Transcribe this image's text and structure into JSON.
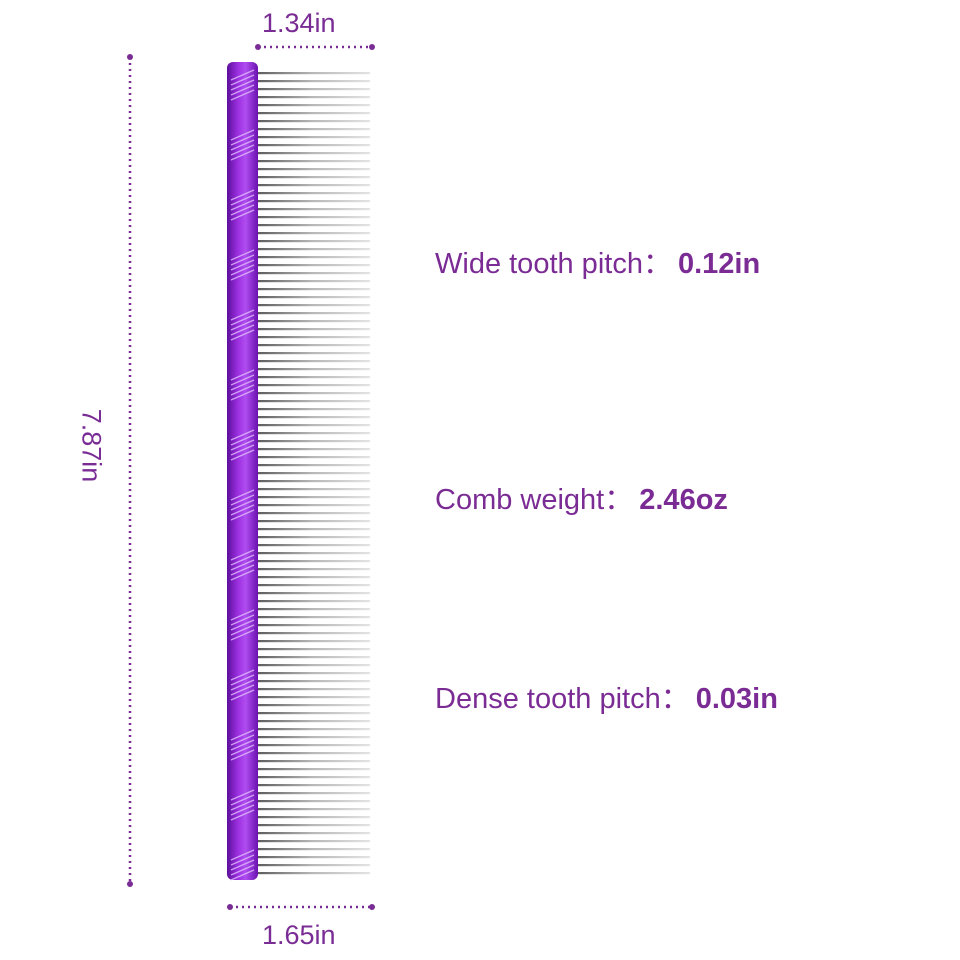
{
  "dimensions": {
    "top_width": "1.34in",
    "bottom_width": "1.65in",
    "length": "7.87in"
  },
  "specs": [
    {
      "label": "Wide tooth pitch：",
      "value": "0.12in"
    },
    {
      "label": "Comb weight：",
      "value": "2.46oz"
    },
    {
      "label": "Dense tooth pitch：",
      "value": "0.03in"
    }
  ],
  "colors": {
    "accent": "#7b2b94",
    "handle": "#8a1fd0",
    "handle_dark": "#5c0f9a",
    "teeth": "#8f8f8f"
  }
}
